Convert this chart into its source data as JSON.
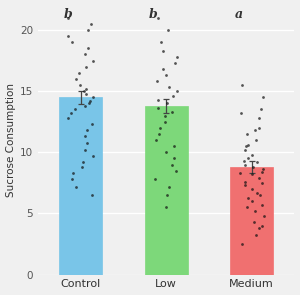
{
  "categories": [
    "Control",
    "Low",
    "Medium"
  ],
  "bar_means": [
    14.5,
    13.8,
    8.8
  ],
  "bar_errors": [
    0.55,
    0.55,
    0.5
  ],
  "bar_colors": [
    "#79C5E8",
    "#7DD87A",
    "#F07070"
  ],
  "bar_edge_colors": [
    "#79C5E8",
    "#7DD87A",
    "#F07070"
  ],
  "letters": [
    "b",
    "b",
    "a"
  ],
  "ylabel": "Sucrose Consumption",
  "ylim": [
    0,
    22
  ],
  "yticks": [
    0,
    5,
    10,
    15,
    20
  ],
  "bg_color": "#F0F0F0",
  "grid_color": "#FFFFFF",
  "dots_control": [
    6.5,
    7.2,
    7.8,
    8.3,
    8.8,
    9.2,
    9.7,
    10.2,
    10.8,
    11.3,
    11.8,
    12.3,
    12.8,
    13.2,
    13.5,
    13.8,
    14.0,
    14.2,
    14.5,
    14.8,
    15.0,
    15.2,
    15.5,
    16.0,
    16.5,
    17.0,
    17.5,
    18.0,
    18.5,
    19.0,
    19.5,
    20.0,
    20.5,
    21.0
  ],
  "dots_low": [
    5.5,
    6.5,
    7.2,
    7.8,
    8.5,
    9.0,
    9.5,
    10.0,
    10.5,
    11.0,
    11.5,
    12.0,
    12.5,
    13.0,
    13.3,
    13.6,
    14.0,
    14.3,
    14.6,
    15.0,
    15.3,
    15.8,
    16.3,
    16.8,
    17.3,
    17.8,
    18.3,
    19.0,
    20.0,
    21.0
  ],
  "dots_medium": [
    2.5,
    3.2,
    3.8,
    4.3,
    4.8,
    5.2,
    5.7,
    6.0,
    6.3,
    6.7,
    7.0,
    7.3,
    7.6,
    7.9,
    8.2,
    8.4,
    8.6,
    8.8,
    9.0,
    9.2,
    9.5,
    9.8,
    10.2,
    10.6,
    11.0,
    11.5,
    12.0,
    12.8,
    13.5,
    14.5,
    15.5,
    4.0,
    5.5,
    6.5,
    7.5,
    8.3,
    9.3,
    10.5,
    11.8,
    13.2
  ],
  "letter_fontsize": 9,
  "ylabel_fontsize": 7.5,
  "tick_fontsize": 7.5,
  "xtick_fontsize": 8
}
